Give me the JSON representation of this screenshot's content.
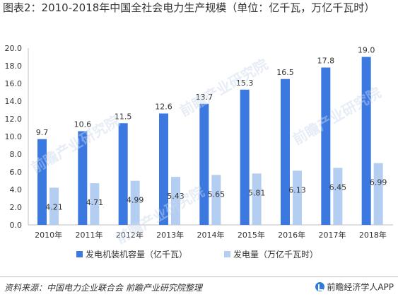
{
  "title": "图表2：2010-2018年中国全社会电力生产规模（单位：亿千瓦，万亿千瓦时）",
  "watermark": "前瞻产业研究院",
  "source": "资料来源：中国电力企业联合会 前瞻产业研究院整理",
  "brand": "前瞻经济学人APP",
  "colors": {
    "series1": "#3b78e0",
    "series2": "#b4cef2",
    "axis": "#bfbfbf"
  },
  "chart_data": {
    "type": "bar",
    "categories": [
      "2010年",
      "2011年",
      "2012年",
      "2013年",
      "2014年",
      "2015年",
      "2016年",
      "2017年",
      "2018年"
    ],
    "series": [
      {
        "name": "发电机装机容量（亿千瓦）",
        "values": [
          9.7,
          10.6,
          11.5,
          12.6,
          13.7,
          15.3,
          16.5,
          17.8,
          19.0
        ],
        "labels": [
          "9.7",
          "10.6",
          "11.5",
          "12.6",
          "13.7",
          "15.3",
          "16.5",
          "17.8",
          "19.0"
        ]
      },
      {
        "name": "发电量（万亿千瓦时）",
        "values": [
          4.21,
          4.71,
          4.99,
          5.43,
          5.65,
          5.81,
          6.13,
          6.45,
          6.99
        ],
        "labels": [
          "4.21",
          "4.71",
          "4.99",
          "5.43",
          "5.65",
          "5.81",
          "6.13",
          "6.45",
          "6.99"
        ]
      }
    ],
    "ylim": [
      0,
      20
    ],
    "yticks": [
      "0.0",
      "2.0",
      "4.0",
      "6.0",
      "8.0",
      "10.0",
      "12.0",
      "14.0",
      "16.0",
      "18.0",
      "20.0"
    ],
    "legend": "bottom",
    "grid": false
  }
}
